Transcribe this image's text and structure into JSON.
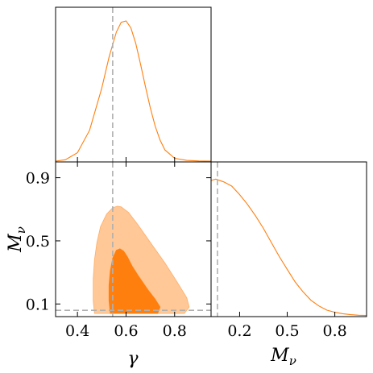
{
  "chart_data": {
    "type": "triangle-corner",
    "color": "#ff7f0e",
    "inner_contour_color": "#ff7f0e",
    "outer_contour_color": "#ffc896",
    "truth_line_color": "#b0b0b0",
    "parameters": [
      {
        "name": "gamma",
        "label": "γ",
        "range": [
          0.31,
          0.95
        ],
        "ticks": [
          0.4,
          0.6,
          0.8
        ],
        "tick_labels": [
          "0.4",
          "0.6",
          "0.8"
        ],
        "truth": 0.545
      },
      {
        "name": "M_nu",
        "label_main": "M",
        "label_sub": "ν",
        "range": [
          0.02,
          1.0
        ],
        "ticks": [
          0.1,
          0.5,
          0.9
        ],
        "tick_labels": [
          "0.1",
          "0.5",
          "0.9"
        ],
        "lower_tick_labels": [
          "0.2",
          "0.5",
          "0.8"
        ],
        "lower_ticks": [
          0.2,
          0.5,
          0.8
        ],
        "truth": 0.06
      }
    ],
    "marginals": [
      {
        "parameter": "gamma",
        "x": [
          0.31,
          0.35,
          0.4,
          0.45,
          0.5,
          0.53,
          0.56,
          0.58,
          0.6,
          0.62,
          0.64,
          0.66,
          0.68,
          0.7,
          0.72,
          0.74,
          0.76,
          0.8,
          0.85,
          0.9,
          0.95
        ],
        "y": [
          0.0,
          0.01,
          0.06,
          0.22,
          0.52,
          0.74,
          0.92,
          0.99,
          1.0,
          0.95,
          0.84,
          0.69,
          0.53,
          0.38,
          0.25,
          0.15,
          0.08,
          0.02,
          0.005,
          0.001,
          0.0
        ]
      },
      {
        "parameter": "M_nu",
        "x": [
          0.02,
          0.05,
          0.1,
          0.15,
          0.2,
          0.25,
          0.3,
          0.35,
          0.4,
          0.45,
          0.5,
          0.55,
          0.6,
          0.65,
          0.7,
          0.75,
          0.8,
          0.85,
          0.9,
          0.95,
          1.0
        ],
        "y": [
          0.96,
          0.97,
          0.95,
          0.92,
          0.86,
          0.79,
          0.71,
          0.62,
          0.52,
          0.42,
          0.33,
          0.24,
          0.17,
          0.11,
          0.07,
          0.04,
          0.025,
          0.015,
          0.008,
          0.004,
          0.002
        ]
      }
    ],
    "joint": {
      "x_parameter": "gamma",
      "y_parameter": "M_nu",
      "outer_contour": [
        [
          0.47,
          0.04
        ],
        [
          0.84,
          0.04
        ],
        [
          0.86,
          0.08
        ],
        [
          0.85,
          0.14
        ],
        [
          0.81,
          0.24
        ],
        [
          0.76,
          0.36
        ],
        [
          0.7,
          0.49
        ],
        [
          0.65,
          0.6
        ],
        [
          0.61,
          0.68
        ],
        [
          0.58,
          0.715
        ],
        [
          0.565,
          0.72
        ],
        [
          0.545,
          0.71
        ],
        [
          0.52,
          0.67
        ],
        [
          0.495,
          0.59
        ],
        [
          0.48,
          0.49
        ],
        [
          0.47,
          0.38
        ],
        [
          0.465,
          0.26
        ],
        [
          0.465,
          0.12
        ]
      ],
      "inner_contour": [
        [
          0.535,
          0.04
        ],
        [
          0.73,
          0.04
        ],
        [
          0.74,
          0.08
        ],
        [
          0.72,
          0.13
        ],
        [
          0.69,
          0.19
        ],
        [
          0.65,
          0.28
        ],
        [
          0.625,
          0.34
        ],
        [
          0.605,
          0.4
        ],
        [
          0.59,
          0.435
        ],
        [
          0.575,
          0.45
        ],
        [
          0.56,
          0.44
        ],
        [
          0.545,
          0.39
        ],
        [
          0.535,
          0.31
        ],
        [
          0.53,
          0.22
        ],
        [
          0.53,
          0.12
        ]
      ]
    }
  }
}
